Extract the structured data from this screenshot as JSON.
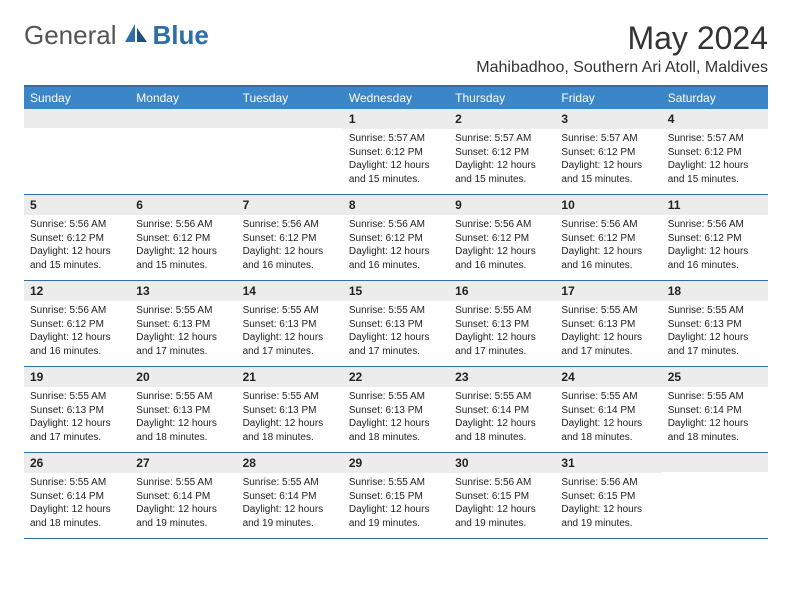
{
  "brand": {
    "general": "General",
    "blue": "Blue"
  },
  "title": "May 2024",
  "location": "Mahibadhoo, Southern Ari Atoll, Maldives",
  "colors": {
    "header_bar": "#3a86c8",
    "rule": "#2f6ea8",
    "daynum_bg": "#ececec",
    "text": "#222222",
    "bg": "#ffffff"
  },
  "weekdays": [
    "Sunday",
    "Monday",
    "Tuesday",
    "Wednesday",
    "Thursday",
    "Friday",
    "Saturday"
  ],
  "weeks": [
    [
      null,
      null,
      null,
      {
        "n": "1",
        "sr": "Sunrise: 5:57 AM",
        "ss": "Sunset: 6:12 PM",
        "d1": "Daylight: 12 hours",
        "d2": "and 15 minutes."
      },
      {
        "n": "2",
        "sr": "Sunrise: 5:57 AM",
        "ss": "Sunset: 6:12 PM",
        "d1": "Daylight: 12 hours",
        "d2": "and 15 minutes."
      },
      {
        "n": "3",
        "sr": "Sunrise: 5:57 AM",
        "ss": "Sunset: 6:12 PM",
        "d1": "Daylight: 12 hours",
        "d2": "and 15 minutes."
      },
      {
        "n": "4",
        "sr": "Sunrise: 5:57 AM",
        "ss": "Sunset: 6:12 PM",
        "d1": "Daylight: 12 hours",
        "d2": "and 15 minutes."
      }
    ],
    [
      {
        "n": "5",
        "sr": "Sunrise: 5:56 AM",
        "ss": "Sunset: 6:12 PM",
        "d1": "Daylight: 12 hours",
        "d2": "and 15 minutes."
      },
      {
        "n": "6",
        "sr": "Sunrise: 5:56 AM",
        "ss": "Sunset: 6:12 PM",
        "d1": "Daylight: 12 hours",
        "d2": "and 15 minutes."
      },
      {
        "n": "7",
        "sr": "Sunrise: 5:56 AM",
        "ss": "Sunset: 6:12 PM",
        "d1": "Daylight: 12 hours",
        "d2": "and 16 minutes."
      },
      {
        "n": "8",
        "sr": "Sunrise: 5:56 AM",
        "ss": "Sunset: 6:12 PM",
        "d1": "Daylight: 12 hours",
        "d2": "and 16 minutes."
      },
      {
        "n": "9",
        "sr": "Sunrise: 5:56 AM",
        "ss": "Sunset: 6:12 PM",
        "d1": "Daylight: 12 hours",
        "d2": "and 16 minutes."
      },
      {
        "n": "10",
        "sr": "Sunrise: 5:56 AM",
        "ss": "Sunset: 6:12 PM",
        "d1": "Daylight: 12 hours",
        "d2": "and 16 minutes."
      },
      {
        "n": "11",
        "sr": "Sunrise: 5:56 AM",
        "ss": "Sunset: 6:12 PM",
        "d1": "Daylight: 12 hours",
        "d2": "and 16 minutes."
      }
    ],
    [
      {
        "n": "12",
        "sr": "Sunrise: 5:56 AM",
        "ss": "Sunset: 6:12 PM",
        "d1": "Daylight: 12 hours",
        "d2": "and 16 minutes."
      },
      {
        "n": "13",
        "sr": "Sunrise: 5:55 AM",
        "ss": "Sunset: 6:13 PM",
        "d1": "Daylight: 12 hours",
        "d2": "and 17 minutes."
      },
      {
        "n": "14",
        "sr": "Sunrise: 5:55 AM",
        "ss": "Sunset: 6:13 PM",
        "d1": "Daylight: 12 hours",
        "d2": "and 17 minutes."
      },
      {
        "n": "15",
        "sr": "Sunrise: 5:55 AM",
        "ss": "Sunset: 6:13 PM",
        "d1": "Daylight: 12 hours",
        "d2": "and 17 minutes."
      },
      {
        "n": "16",
        "sr": "Sunrise: 5:55 AM",
        "ss": "Sunset: 6:13 PM",
        "d1": "Daylight: 12 hours",
        "d2": "and 17 minutes."
      },
      {
        "n": "17",
        "sr": "Sunrise: 5:55 AM",
        "ss": "Sunset: 6:13 PM",
        "d1": "Daylight: 12 hours",
        "d2": "and 17 minutes."
      },
      {
        "n": "18",
        "sr": "Sunrise: 5:55 AM",
        "ss": "Sunset: 6:13 PM",
        "d1": "Daylight: 12 hours",
        "d2": "and 17 minutes."
      }
    ],
    [
      {
        "n": "19",
        "sr": "Sunrise: 5:55 AM",
        "ss": "Sunset: 6:13 PM",
        "d1": "Daylight: 12 hours",
        "d2": "and 17 minutes."
      },
      {
        "n": "20",
        "sr": "Sunrise: 5:55 AM",
        "ss": "Sunset: 6:13 PM",
        "d1": "Daylight: 12 hours",
        "d2": "and 18 minutes."
      },
      {
        "n": "21",
        "sr": "Sunrise: 5:55 AM",
        "ss": "Sunset: 6:13 PM",
        "d1": "Daylight: 12 hours",
        "d2": "and 18 minutes."
      },
      {
        "n": "22",
        "sr": "Sunrise: 5:55 AM",
        "ss": "Sunset: 6:13 PM",
        "d1": "Daylight: 12 hours",
        "d2": "and 18 minutes."
      },
      {
        "n": "23",
        "sr": "Sunrise: 5:55 AM",
        "ss": "Sunset: 6:14 PM",
        "d1": "Daylight: 12 hours",
        "d2": "and 18 minutes."
      },
      {
        "n": "24",
        "sr": "Sunrise: 5:55 AM",
        "ss": "Sunset: 6:14 PM",
        "d1": "Daylight: 12 hours",
        "d2": "and 18 minutes."
      },
      {
        "n": "25",
        "sr": "Sunrise: 5:55 AM",
        "ss": "Sunset: 6:14 PM",
        "d1": "Daylight: 12 hours",
        "d2": "and 18 minutes."
      }
    ],
    [
      {
        "n": "26",
        "sr": "Sunrise: 5:55 AM",
        "ss": "Sunset: 6:14 PM",
        "d1": "Daylight: 12 hours",
        "d2": "and 18 minutes."
      },
      {
        "n": "27",
        "sr": "Sunrise: 5:55 AM",
        "ss": "Sunset: 6:14 PM",
        "d1": "Daylight: 12 hours",
        "d2": "and 19 minutes."
      },
      {
        "n": "28",
        "sr": "Sunrise: 5:55 AM",
        "ss": "Sunset: 6:14 PM",
        "d1": "Daylight: 12 hours",
        "d2": "and 19 minutes."
      },
      {
        "n": "29",
        "sr": "Sunrise: 5:55 AM",
        "ss": "Sunset: 6:15 PM",
        "d1": "Daylight: 12 hours",
        "d2": "and 19 minutes."
      },
      {
        "n": "30",
        "sr": "Sunrise: 5:56 AM",
        "ss": "Sunset: 6:15 PM",
        "d1": "Daylight: 12 hours",
        "d2": "and 19 minutes."
      },
      {
        "n": "31",
        "sr": "Sunrise: 5:56 AM",
        "ss": "Sunset: 6:15 PM",
        "d1": "Daylight: 12 hours",
        "d2": "and 19 minutes."
      },
      null
    ]
  ]
}
